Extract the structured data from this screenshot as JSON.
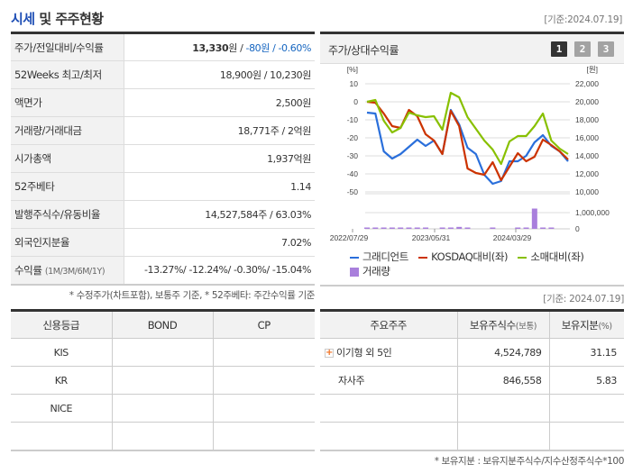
{
  "left_panel": {
    "title_accent": "시세",
    "title_rest": " 및 주주현황",
    "base_date": "[기준:2024.07.19]",
    "rows": [
      {
        "label": "주가/전일대비/수익률",
        "price": "13,330",
        "price_unit": "원 / ",
        "change": "-80원 / -0.60%"
      },
      {
        "label": "52Weeks 최고/최저",
        "value": "18,900원 / 10,230원"
      },
      {
        "label": "액면가",
        "value": "2,500원"
      },
      {
        "label": "거래량/거래대금",
        "value": "18,771주 / 2억원"
      },
      {
        "label": "시가총액",
        "value": "1,937억원"
      },
      {
        "label": "52주베타",
        "value": "1.14"
      },
      {
        "label": "발행주식수/유동비율",
        "value": "14,527,584주 / 63.03%"
      },
      {
        "label": "외국인지분율",
        "value": "7.02%"
      },
      {
        "label": "수익률",
        "label_sub": "(1M/3M/6M/1Y)",
        "value": "-13.27%/ -12.24%/ -0.30%/ -15.04%"
      }
    ],
    "footnote": "* 수정주가(차트포함), 보통주 기준, * 52주베타: 주간수익률 기준"
  },
  "chart_panel": {
    "title": "주가/상대수익률",
    "tabs": [
      "1",
      "2",
      "3"
    ],
    "active_tab": "1",
    "left_axis_unit": "[%]",
    "right_axis_unit": "[원]",
    "left_ticks": [
      "10",
      "0",
      "-10",
      "-20",
      "-30",
      "-40",
      "-50"
    ],
    "right_ticks": [
      "22,000",
      "20,000",
      "18,000",
      "16,000",
      "14,000",
      "12,000",
      "10,000"
    ],
    "volume_ticks": [
      "1,000,000",
      "0"
    ],
    "x_ticks": [
      "2022/07/29",
      "2023/05/31",
      "2024/03/29"
    ],
    "legend": [
      {
        "label": "그래디언트",
        "color": "#2a6fdb",
        "type": "line"
      },
      {
        "label": "KOSDAQ대비(좌)",
        "color": "#cc3300",
        "type": "line"
      },
      {
        "label": "소매대비(좌)",
        "color": "#88c000",
        "type": "line"
      },
      {
        "label": "거래량",
        "color": "#a97fdc",
        "type": "bar"
      }
    ]
  },
  "chart_data": {
    "type": "line",
    "title": "주가/상대수익률",
    "xlabel": "",
    "ylabel": "[%]",
    "y2label": "[원]",
    "ylim": [
      -50,
      10
    ],
    "y2lim": [
      10000,
      22000
    ],
    "x_tick_labels": [
      "2022/07/29",
      "2023/05/31",
      "2024/03/29"
    ],
    "grid": true,
    "legend_position": "bottom",
    "series": [
      {
        "name": "그래디언트",
        "axis": "right",
        "values_pct_scale": [
          -6,
          -6.5,
          -27.5,
          -31.5,
          -29,
          -25,
          -21,
          -24.5,
          -21.5,
          -29,
          -4.5,
          -12.5,
          -25.5,
          -29,
          -40.5,
          -45.5,
          -44,
          -33,
          -33,
          -30,
          -22.5,
          -18.5,
          -24.5,
          -27.5,
          -33
        ]
      },
      {
        "name": "KOSDAQ대비(좌)",
        "axis": "left",
        "values": [
          0,
          -0.5,
          -6.5,
          -13.5,
          -14.5,
          -4.5,
          -8,
          -18,
          -21.5,
          -29,
          -5,
          -13.5,
          -37,
          -39.5,
          -40.5,
          -33.5,
          -43.5,
          -36,
          -28.5,
          -33,
          -30.5,
          -21,
          -24,
          -27.5,
          -32
        ]
      },
      {
        "name": "소매대비(좌)",
        "axis": "left",
        "values": [
          0,
          1,
          -10.5,
          -17,
          -14.5,
          -6,
          -7.5,
          -8.5,
          -8,
          -15.5,
          5,
          2.5,
          -8.5,
          -15,
          -21.5,
          -26.5,
          -34.5,
          -22,
          -19,
          -19,
          -13.5,
          -6.5,
          -21.5,
          -26,
          -29
        ]
      },
      {
        "name": "거래량",
        "axis": "volume",
        "type": "bar",
        "values": [
          30000,
          30000,
          30000,
          30000,
          30000,
          30000,
          80000,
          30000,
          0,
          30000,
          30000,
          120000,
          30000,
          0,
          0,
          30000,
          0,
          0,
          30000,
          30000,
          1250000,
          30000,
          30000,
          0,
          0
        ]
      }
    ]
  },
  "credit_panel": {
    "headers": [
      "신용등급",
      "BOND",
      "CP"
    ],
    "rows": [
      [
        "KIS",
        "",
        ""
      ],
      [
        "KR",
        "",
        ""
      ],
      [
        "NICE",
        "",
        ""
      ],
      [
        "",
        "",
        ""
      ]
    ]
  },
  "holder_panel": {
    "base_date": "[기준: 2024.07.19]",
    "headers": [
      "주요주주",
      "보유주식수",
      "(보통)",
      "보유지분",
      "(%)"
    ],
    "rows": [
      {
        "name": "이기형 외 5인",
        "expandable": true,
        "shares": "4,524,789",
        "pct": "31.15"
      },
      {
        "name": "자사주",
        "expandable": false,
        "shares": "846,558",
        "pct": "5.83"
      },
      {
        "name": "",
        "expandable": false,
        "shares": "",
        "pct": ""
      },
      {
        "name": "",
        "expandable": false,
        "shares": "",
        "pct": ""
      }
    ],
    "footnote": "* 보유지분 : 보유지분주식수/지수산정주식수*100"
  }
}
